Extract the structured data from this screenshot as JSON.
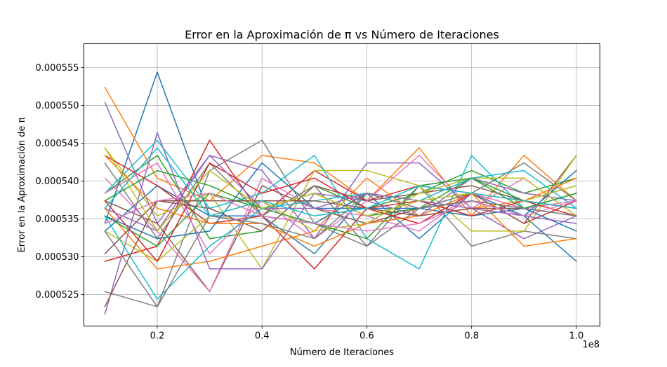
{
  "chart_data": {
    "type": "line",
    "title": "Error en la Aproximación de π vs Número de Iteraciones",
    "xlabel": "Número de Iteraciones",
    "ylabel": "Error en la Aproximación de π",
    "x_offset_label": "1e8",
    "x_ticks": [
      0.2,
      0.4,
      0.6,
      0.8,
      1.0
    ],
    "x_tick_labels": [
      "0.2",
      "0.4",
      "0.6",
      "0.8",
      "1.0"
    ],
    "y_ticks": [
      0.000525,
      0.00053,
      0.000535,
      0.00054,
      0.000545,
      0.00055,
      0.000555
    ],
    "y_tick_labels": [
      "0.000525",
      "0.000530",
      "0.000535",
      "0.000540",
      "0.000545",
      "0.000550",
      "0.000555"
    ],
    "xlim": [
      0.06,
      1.045
    ],
    "ylim": [
      0.00052085,
      0.00055815
    ],
    "grid": true,
    "legend": "none",
    "x": [
      0.1,
      0.2,
      0.3,
      0.4,
      0.5,
      0.6,
      0.7,
      0.8,
      0.9,
      1.0
    ],
    "series": [
      {
        "color": "#1f77b4",
        "values": [
          0.0005344,
          0.0005544,
          0.0005354,
          0.0005354,
          0.0005304,
          0.0005384,
          0.0005324,
          0.0005384,
          0.0005354,
          0.0005294
        ]
      },
      {
        "color": "#ff7f0e",
        "values": [
          0.0005524,
          0.0005404,
          0.0005374,
          0.0005434,
          0.0005424,
          0.0005374,
          0.0005444,
          0.0005354,
          0.0005434,
          0.0005374
        ]
      },
      {
        "color": "#2ca02c",
        "values": [
          0.0005384,
          0.0005434,
          0.0005324,
          0.0005334,
          0.0005394,
          0.0005364,
          0.0005384,
          0.0005414,
          0.0005384,
          0.0005404
        ]
      },
      {
        "color": "#d62728",
        "values": [
          0.0005294,
          0.0005314,
          0.0005454,
          0.0005354,
          0.0005414,
          0.0005374,
          0.0005394,
          0.0005384,
          0.0005344,
          0.0005374
        ]
      },
      {
        "color": "#9467bd",
        "values": [
          0.0005504,
          0.0005344,
          0.0005434,
          0.0005414,
          0.0005324,
          0.0005424,
          0.0005424,
          0.0005364,
          0.0005324,
          0.0005354
        ]
      },
      {
        "color": "#8c564b",
        "values": [
          0.0005374,
          0.0005344,
          0.0005254,
          0.0005394,
          0.0005364,
          0.0005344,
          0.0005364,
          0.0005384,
          0.0005344,
          0.0005434
        ]
      },
      {
        "color": "#e377c2",
        "values": [
          0.0005404,
          0.0005334,
          0.0005254,
          0.0005404,
          0.0005364,
          0.0005354,
          0.0005334,
          0.0005384,
          0.0005364,
          0.0005374
        ]
      },
      {
        "color": "#7f7f7f",
        "values": [
          0.0005254,
          0.0005234,
          0.0005414,
          0.0005454,
          0.0005344,
          0.0005314,
          0.0005394,
          0.0005314,
          0.0005334,
          0.0005324
        ]
      },
      {
        "color": "#bcbd22",
        "values": [
          0.0005444,
          0.0005354,
          0.0005384,
          0.0005284,
          0.0005414,
          0.0005414,
          0.0005394,
          0.0005334,
          0.0005334,
          0.0005434
        ]
      },
      {
        "color": "#17becf",
        "values": [
          0.0005384,
          0.0005454,
          0.0005364,
          0.0005384,
          0.0005434,
          0.0005324,
          0.0005284,
          0.0005434,
          0.0005364,
          0.0005384
        ]
      },
      {
        "color": "#1f77b4",
        "values": [
          0.0005334,
          0.0005394,
          0.0005354,
          0.0005354,
          0.0005344,
          0.0005384,
          0.0005364,
          0.0005354,
          0.0005364,
          0.0005334
        ]
      },
      {
        "color": "#ff7f0e",
        "values": [
          0.0005364,
          0.0005284,
          0.0005294,
          0.0005314,
          0.0005334,
          0.0005404,
          0.0005354,
          0.0005384,
          0.0005314,
          0.0005324
        ]
      },
      {
        "color": "#2ca02c",
        "values": [
          0.0005354,
          0.0005314,
          0.0005384,
          0.0005364,
          0.0005384,
          0.0005354,
          0.0005364,
          0.0005404,
          0.0005374,
          0.0005394
        ]
      },
      {
        "color": "#d62728",
        "values": [
          0.0005434,
          0.0005394,
          0.0005344,
          0.0005354,
          0.0005284,
          0.0005364,
          0.0005374,
          0.0005354,
          0.0005374,
          0.0005354
        ]
      },
      {
        "color": "#9467bd",
        "values": [
          0.0005224,
          0.0005464,
          0.0005284,
          0.0005284,
          0.0005384,
          0.0005374,
          0.0005354,
          0.0005404,
          0.0005384,
          0.0005374
        ]
      },
      {
        "color": "#8c564b",
        "values": [
          0.0005304,
          0.0005374,
          0.0005364,
          0.0005334,
          0.0005394,
          0.0005374,
          0.0005384,
          0.0005394,
          0.0005374,
          0.0005364
        ]
      },
      {
        "color": "#e377c2",
        "values": [
          0.0005384,
          0.0005424,
          0.0005304,
          0.0005374,
          0.0005324,
          0.0005374,
          0.0005434,
          0.0005364,
          0.0005404,
          0.0005354
        ]
      },
      {
        "color": "#7f7f7f",
        "values": [
          0.0005424,
          0.0005324,
          0.0005424,
          0.0005354,
          0.0005394,
          0.0005314,
          0.0005364,
          0.0005384,
          0.0005424,
          0.0005374
        ]
      },
      {
        "color": "#bcbd22",
        "values": [
          0.0005334,
          0.0005294,
          0.0005354,
          0.0005374,
          0.0005334,
          0.0005344,
          0.0005384,
          0.0005404,
          0.0005404,
          0.0005354
        ]
      },
      {
        "color": "#17becf",
        "values": [
          0.0005354,
          0.0005244,
          0.0005314,
          0.0005364,
          0.0005374,
          0.0005384,
          0.0005374,
          0.0005404,
          0.0005414,
          0.0005364
        ]
      },
      {
        "color": "#1f77b4",
        "values": [
          0.0005354,
          0.0005324,
          0.0005334,
          0.0005424,
          0.0005364,
          0.0005364,
          0.0005364,
          0.0005374,
          0.0005354,
          0.0005414
        ]
      },
      {
        "color": "#ff7f0e",
        "values": [
          0.0005434,
          0.0005364,
          0.0005344,
          0.0005344,
          0.0005314,
          0.0005344,
          0.0005354,
          0.0005364,
          0.0005374,
          0.0005404
        ]
      },
      {
        "color": "#2ca02c",
        "values": [
          0.0005374,
          0.0005414,
          0.0005394,
          0.0005364,
          0.0005344,
          0.0005324,
          0.0005394,
          0.0005404,
          0.0005364,
          0.0005384
        ]
      },
      {
        "color": "#d62728",
        "values": [
          0.0005374,
          0.0005294,
          0.0005424,
          0.0005384,
          0.0005404,
          0.0005364,
          0.0005344,
          0.0005384,
          0.0005374,
          0.0005364
        ]
      },
      {
        "color": "#9467bd",
        "values": [
          0.0005364,
          0.0005334,
          0.0005434,
          0.0005364,
          0.0005364,
          0.0005384,
          0.0005374,
          0.0005364,
          0.0005354,
          0.0005344
        ]
      },
      {
        "color": "#8c564b",
        "values": [
          0.0005234,
          0.0005374,
          0.0005374,
          0.0005374,
          0.0005374,
          0.0005364,
          0.0005354,
          0.0005364,
          0.0005364,
          0.0005354
        ]
      },
      {
        "color": "#e377c2",
        "values": [
          0.0005344,
          0.0005374,
          0.0005384,
          0.0005354,
          0.0005344,
          0.0005334,
          0.0005344,
          0.0005374,
          0.0005354,
          0.0005374
        ]
      },
      {
        "color": "#7f7f7f",
        "values": [
          0.0005334,
          0.0005234,
          0.0005354,
          0.0005344,
          0.0005324,
          0.0005384,
          0.0005364,
          0.0005374,
          0.0005364,
          0.0005354
        ]
      },
      {
        "color": "#bcbd22",
        "values": [
          0.0005444,
          0.0005334,
          0.0005414,
          0.0005364,
          0.0005384,
          0.0005354,
          0.0005374,
          0.0005384,
          0.0005374,
          0.0005394
        ]
      },
      {
        "color": "#17becf",
        "values": [
          0.0005364,
          0.0005444,
          0.0005354,
          0.0005374,
          0.0005354,
          0.0005364,
          0.0005394,
          0.0005384,
          0.0005374,
          0.0005364
        ]
      }
    ]
  }
}
